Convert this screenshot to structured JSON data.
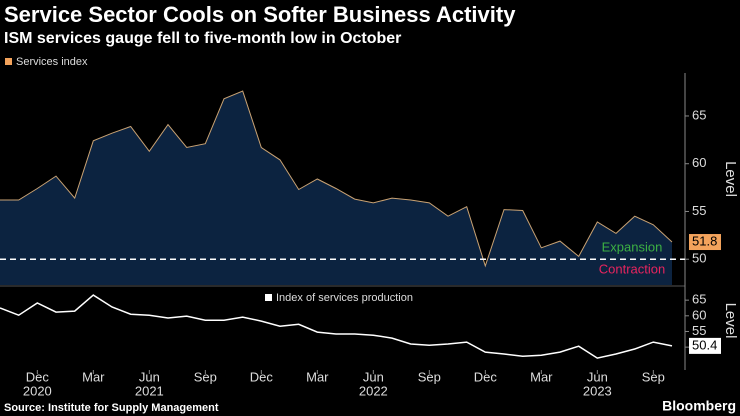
{
  "header": {
    "title": "Service Sector Cools on Softer Business Activity",
    "subtitle": "ISM services gauge fell to five-month low in October"
  },
  "footer": {
    "source": "Source: Institute for Supply Management",
    "brand": "Bloomberg"
  },
  "chart_data": [
    {
      "type": "area",
      "x": [
        "2020-10",
        "2020-11",
        "2020-12",
        "2021-01",
        "2021-02",
        "2021-03",
        "2021-04",
        "2021-05",
        "2021-06",
        "2021-07",
        "2021-08",
        "2021-09",
        "2021-10",
        "2021-11",
        "2021-12",
        "2022-01",
        "2022-02",
        "2022-03",
        "2022-04",
        "2022-05",
        "2022-06",
        "2022-07",
        "2022-08",
        "2022-09",
        "2022-10",
        "2022-11",
        "2022-12",
        "2023-01",
        "2023-02",
        "2023-03",
        "2023-04",
        "2023-05",
        "2023-06",
        "2023-07",
        "2023-08",
        "2023-09",
        "2023-10"
      ],
      "series": [
        {
          "name": "Services index",
          "color": "#f3a35c",
          "line_color": "#c9a273",
          "fill": "#0c2340",
          "values": [
            56.2,
            56.2,
            57.4,
            58.7,
            56.4,
            62.4,
            63.2,
            63.9,
            61.3,
            64.1,
            61.7,
            62.1,
            66.8,
            67.6,
            61.7,
            60.4,
            57.3,
            58.4,
            57.4,
            56.3,
            55.9,
            56.4,
            56.2,
            55.9,
            54.5,
            55.5,
            49.3,
            55.2,
            55.1,
            51.2,
            51.9,
            50.3,
            53.9,
            52.7,
            54.5,
            53.6,
            51.8
          ]
        }
      ],
      "ylim": [
        47.3,
        69.5
      ],
      "yticks": [
        50,
        55,
        60,
        65
      ],
      "y_label": "Level",
      "hline": 50,
      "annotations": [
        {
          "text": "Expansion",
          "color": "#3cb043"
        },
        {
          "text": "Contraction",
          "color": "#e8245e"
        }
      ]
    },
    {
      "type": "line",
      "x": [
        "2020-10",
        "2020-11",
        "2020-12",
        "2021-01",
        "2021-02",
        "2021-03",
        "2021-04",
        "2021-05",
        "2021-06",
        "2021-07",
        "2021-08",
        "2021-09",
        "2021-10",
        "2021-11",
        "2021-12",
        "2022-01",
        "2022-02",
        "2022-03",
        "2022-04",
        "2022-05",
        "2022-06",
        "2022-07",
        "2022-08",
        "2022-09",
        "2022-10",
        "2022-11",
        "2022-12",
        "2023-01",
        "2023-02",
        "2023-03",
        "2023-04",
        "2023-05",
        "2023-06",
        "2023-07",
        "2023-08",
        "2023-09",
        "2023-10"
      ],
      "series": [
        {
          "name": "Index of services production",
          "color": "#ffffff",
          "values": [
            62.5,
            60.2,
            64.1,
            61.2,
            61.5,
            66.6,
            62.8,
            60.5,
            60.2,
            59.3,
            59.9,
            58.6,
            58.6,
            59.6,
            58.3,
            56.7,
            57.3,
            54.8,
            54.2,
            54.2,
            53.8,
            52.9,
            51.0,
            50.6,
            51.0,
            51.6,
            48.4,
            47.8,
            47.1,
            47.4,
            48.4,
            50.3,
            46.5,
            47.8,
            49.4,
            51.6,
            50.4
          ]
        }
      ],
      "ylim": [
        42.7,
        69.2
      ],
      "yticks": [
        50,
        55,
        60,
        65
      ],
      "y_label": "Level",
      "xticks": [
        {
          "value": "2020-12",
          "label": "Dec"
        },
        {
          "value": "2021-03",
          "label": "Mar"
        },
        {
          "value": "2021-06",
          "label": "Jun"
        },
        {
          "value": "2021-09",
          "label": "Sep"
        },
        {
          "value": "2021-12",
          "label": "Dec"
        },
        {
          "value": "2022-03",
          "label": "Mar"
        },
        {
          "value": "2022-06",
          "label": "Jun"
        },
        {
          "value": "2022-09",
          "label": "Sep"
        },
        {
          "value": "2022-12",
          "label": "Dec"
        },
        {
          "value": "2023-03",
          "label": "Mar"
        },
        {
          "value": "2023-06",
          "label": "Jun"
        },
        {
          "value": "2023-09",
          "label": "Sep"
        }
      ],
      "xyears": [
        {
          "value": "2020-12",
          "label": "2020"
        },
        {
          "value": "2021-06",
          "label": "2021"
        },
        {
          "value": "2022-06",
          "label": "2022"
        },
        {
          "value": "2023-06",
          "label": "2023"
        }
      ]
    }
  ]
}
